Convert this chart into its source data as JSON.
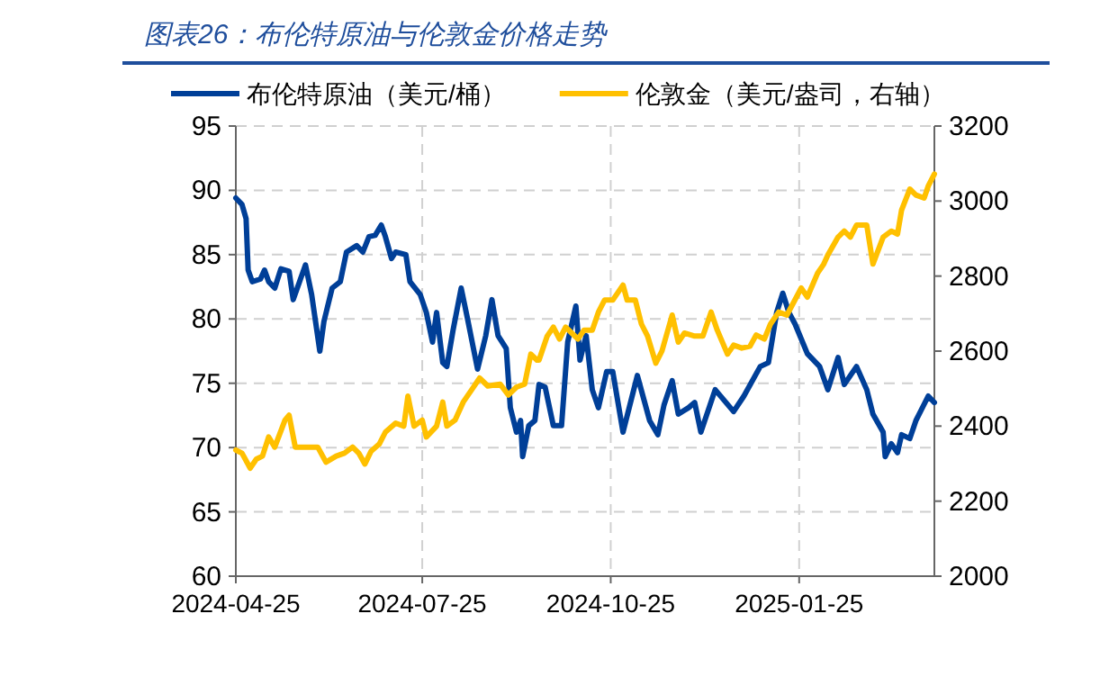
{
  "chart_data": {
    "type": "line",
    "title": "图表26：布伦特原油与伦敦金价格走势",
    "grid": true,
    "legend": "top",
    "line_style": "solid",
    "xlim": [
      "2024-04-25",
      "2025-04-01"
    ],
    "xticks": [
      "2024-04-25",
      "2024-07-25",
      "2024-10-25",
      "2025-01-25"
    ],
    "ylim": [
      60,
      95
    ],
    "yticks": [
      60,
      65,
      70,
      75,
      80,
      85,
      90,
      95
    ],
    "y2lim": [
      2000,
      3200
    ],
    "y2ticks": [
      2000,
      2200,
      2400,
      2600,
      2800,
      3000,
      3200
    ],
    "series": [
      {
        "name": "布伦特原油（美元/桶）",
        "color": "#003f98",
        "x": [
          "2024-04-25",
          "2024-04-28",
          "2024-04-30",
          "2024-05-01",
          "2024-05-03",
          "2024-05-07",
          "2024-05-09",
          "2024-05-11",
          "2024-05-14",
          "2024-05-17",
          "2024-05-21",
          "2024-05-23",
          "2024-05-25",
          "2024-05-29",
          "2024-06-01",
          "2024-06-05",
          "2024-06-07",
          "2024-06-11",
          "2024-06-15",
          "2024-06-18",
          "2024-06-23",
          "2024-06-26",
          "2024-06-29",
          "2024-07-02",
          "2024-07-05",
          "2024-07-07",
          "2024-07-10",
          "2024-07-12",
          "2024-07-17",
          "2024-07-19",
          "2024-07-24",
          "2024-07-27",
          "2024-07-30",
          "2024-08-01",
          "2024-08-04",
          "2024-08-06",
          "2024-08-09",
          "2024-08-13",
          "2024-08-16",
          "2024-08-21",
          "2024-08-25",
          "2024-08-28",
          "2024-08-31",
          "2024-09-04",
          "2024-09-06",
          "2024-09-09",
          "2024-09-11",
          "2024-09-12",
          "2024-09-15",
          "2024-09-18",
          "2024-09-20",
          "2024-09-23",
          "2024-09-27",
          "2024-10-01",
          "2024-10-04",
          "2024-10-08",
          "2024-10-10",
          "2024-10-13",
          "2024-10-16",
          "2024-10-19",
          "2024-10-23",
          "2024-10-26",
          "2024-10-31",
          "2024-11-07",
          "2024-11-13",
          "2024-11-17",
          "2024-11-20",
          "2024-11-24",
          "2024-11-27",
          "2024-12-02",
          "2024-12-05",
          "2024-12-08",
          "2024-12-15",
          "2024-12-24",
          "2024-12-29",
          "2025-01-06",
          "2025-01-10",
          "2025-01-14",
          "2025-01-17",
          "2025-01-20",
          "2025-01-23",
          "2025-01-29",
          "2025-02-04",
          "2025-02-08",
          "2025-02-13",
          "2025-02-16",
          "2025-02-22",
          "2025-02-27",
          "2025-03-02",
          "2025-03-07",
          "2025-03-08",
          "2025-03-11",
          "2025-03-14",
          "2025-03-16",
          "2025-03-20",
          "2025-03-23",
          "2025-03-29",
          "2025-04-01"
        ],
        "values": [
          89.4,
          88.9,
          87.8,
          83.8,
          82.9,
          83.1,
          83.8,
          82.9,
          82.4,
          83.9,
          83.7,
          81.5,
          82.4,
          84.2,
          81.9,
          77.5,
          79.8,
          82.4,
          82.9,
          85.2,
          85.7,
          85.2,
          86.4,
          86.5,
          87.3,
          86.4,
          84.7,
          85.2,
          85.0,
          82.9,
          81.9,
          80.5,
          78.2,
          80.5,
          76.6,
          76.3,
          79.1,
          82.4,
          80.1,
          76.1,
          78.7,
          81.5,
          78.7,
          77.7,
          73.1,
          71.2,
          72.1,
          69.3,
          71.7,
          72.1,
          74.9,
          74.7,
          71.7,
          71.7,
          78.2,
          81.0,
          76.8,
          78.7,
          74.5,
          73.1,
          75.9,
          75.9,
          71.2,
          75.6,
          72.1,
          71.0,
          73.3,
          75.2,
          72.6,
          73.1,
          73.5,
          71.2,
          74.5,
          72.8,
          74.0,
          76.3,
          76.6,
          80.5,
          82.0,
          80.5,
          79.6,
          77.3,
          76.3,
          74.5,
          77.0,
          74.9,
          76.3,
          74.5,
          72.6,
          71.2,
          69.3,
          70.3,
          69.6,
          71.0,
          70.7,
          72.1,
          74.0,
          73.5
        ]
      },
      {
        "name": "伦敦金（美元/盎司，右轴）",
        "color": "#ffc000",
        "axis": "y2",
        "x": [
          "2024-04-25",
          "2024-04-28",
          "2024-05-02",
          "2024-05-05",
          "2024-05-08",
          "2024-05-11",
          "2024-05-14",
          "2024-05-19",
          "2024-05-21",
          "2024-05-24",
          "2024-05-29",
          "2024-06-04",
          "2024-06-08",
          "2024-06-13",
          "2024-06-17",
          "2024-06-21",
          "2024-06-24",
          "2024-06-27",
          "2024-06-30",
          "2024-07-04",
          "2024-07-07",
          "2024-07-12",
          "2024-07-16",
          "2024-07-18",
          "2024-07-21",
          "2024-07-25",
          "2024-07-27",
          "2024-08-01",
          "2024-08-04",
          "2024-08-06",
          "2024-08-10",
          "2024-08-14",
          "2024-08-18",
          "2024-08-22",
          "2024-08-26",
          "2024-09-01",
          "2024-09-05",
          "2024-09-09",
          "2024-09-13",
          "2024-09-16",
          "2024-09-19",
          "2024-09-20",
          "2024-09-24",
          "2024-09-27",
          "2024-09-30",
          "2024-10-03",
          "2024-10-06",
          "2024-10-09",
          "2024-10-12",
          "2024-10-16",
          "2024-10-19",
          "2024-10-22",
          "2024-10-26",
          "2024-10-31",
          "2024-11-02",
          "2024-11-06",
          "2024-11-09",
          "2024-11-12",
          "2024-11-16",
          "2024-11-19",
          "2024-11-24",
          "2024-11-27",
          "2024-11-30",
          "2024-12-05",
          "2024-12-09",
          "2024-12-13",
          "2024-12-16",
          "2024-12-21",
          "2024-12-24",
          "2024-12-28",
          "2025-01-01",
          "2025-01-04",
          "2025-01-08",
          "2025-01-11",
          "2025-01-15",
          "2025-01-19",
          "2025-01-26",
          "2025-01-29",
          "2025-02-03",
          "2025-02-06",
          "2025-02-08",
          "2025-02-13",
          "2025-02-16",
          "2025-02-19",
          "2025-02-22",
          "2025-02-27",
          "2025-03-02",
          "2025-03-07",
          "2025-03-11",
          "2025-03-14",
          "2025-03-16",
          "2025-03-20",
          "2025-03-23",
          "2025-03-27",
          "2025-03-29",
          "2025-04-01"
        ],
        "values": [
          2336,
          2328,
          2288,
          2312,
          2320,
          2371,
          2344,
          2416,
          2429,
          2344,
          2344,
          2344,
          2304,
          2320,
          2328,
          2344,
          2328,
          2299,
          2333,
          2352,
          2384,
          2408,
          2400,
          2480,
          2400,
          2416,
          2371,
          2400,
          2464,
          2400,
          2416,
          2464,
          2496,
          2528,
          2507,
          2512,
          2483,
          2504,
          2512,
          2592,
          2576,
          2576,
          2640,
          2664,
          2632,
          2664,
          2648,
          2632,
          2656,
          2656,
          2704,
          2736,
          2736,
          2776,
          2736,
          2736,
          2672,
          2640,
          2568,
          2600,
          2696,
          2624,
          2648,
          2640,
          2640,
          2704,
          2656,
          2592,
          2616,
          2608,
          2613,
          2643,
          2632,
          2672,
          2704,
          2696,
          2768,
          2744,
          2808,
          2832,
          2856,
          2904,
          2920,
          2904,
          2936,
          2936,
          2832,
          2904,
          2920,
          2912,
          2976,
          3032,
          3016,
          3008,
          3040,
          3072
        ]
      }
    ]
  }
}
